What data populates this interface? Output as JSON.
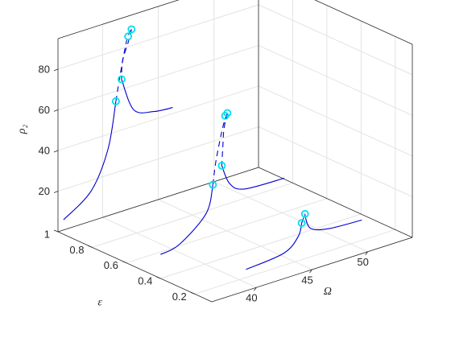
{
  "chart_data": {
    "type": "line",
    "view": "3d",
    "title": "",
    "xlabel": "Ω",
    "ylabel": "ε",
    "zlabel": "ρ₂",
    "x_ticks": [
      40,
      45,
      50
    ],
    "y_ticks": [
      1,
      0.8,
      0.6,
      0.4,
      0.2
    ],
    "y_tick_labels": [
      "1",
      "0.8",
      "0.6",
      "0.4",
      "0.2"
    ],
    "z_ticks": [
      20,
      40,
      60,
      80
    ],
    "xlim": [
      36,
      54
    ],
    "ylim": [
      0.1,
      1.0
    ],
    "zlim": [
      0,
      95
    ],
    "grid": true,
    "box": true,
    "line_color": "#0000cc",
    "marker_color": "#00e0ee",
    "series": [
      {
        "epsilon": 1.0,
        "left_branch": [
          [
            36.5,
            5
          ],
          [
            39.0,
            15
          ],
          [
            40.5,
            33
          ],
          [
            41.2,
            55
          ]
        ],
        "left_dashed": [
          [
            41.2,
            55
          ],
          [
            41.6,
            68
          ],
          [
            42.2,
            84
          ],
          [
            42.6,
            88
          ]
        ],
        "right_dashed": [
          [
            42.6,
            88
          ],
          [
            42.3,
            82
          ],
          [
            41.8,
            74
          ],
          [
            41.7,
            65
          ]
        ],
        "right_branch": [
          [
            41.7,
            65
          ],
          [
            42.8,
            48
          ],
          [
            44.6,
            44
          ],
          [
            46.3,
            43
          ]
        ],
        "fold_points": [
          [
            41.2,
            55
          ],
          [
            42.6,
            88
          ],
          [
            42.3,
            85
          ],
          [
            41.7,
            65
          ]
        ]
      },
      {
        "epsilon": 0.55,
        "left_branch": [
          [
            38.3,
            2
          ],
          [
            40.0,
            4
          ],
          [
            42.4,
            15
          ],
          [
            43.0,
            28
          ]
        ],
        "left_dashed": [
          [
            43.0,
            28
          ],
          [
            43.3,
            40
          ],
          [
            43.9,
            55
          ],
          [
            44.3,
            61
          ]
        ],
        "right_dashed": [
          [
            44.3,
            61
          ],
          [
            44.0,
            54
          ],
          [
            43.9,
            46
          ],
          [
            43.8,
            36
          ]
        ],
        "right_branch": [
          [
            43.8,
            36
          ],
          [
            44.5,
            26
          ],
          [
            45.8,
            21
          ],
          [
            49.4,
            20
          ]
        ],
        "fold_points": [
          [
            43.0,
            28
          ],
          [
            44.3,
            61
          ],
          [
            44.1,
            60
          ],
          [
            43.8,
            36
          ]
        ]
      },
      {
        "epsilon": 0.2,
        "left_branch": [
          [
            40.6,
            4
          ],
          [
            44.0,
            6
          ],
          [
            45.3,
            12
          ],
          [
            45.6,
            18
          ]
        ],
        "left_dashed": [
          [
            45.6,
            18
          ],
          [
            45.9,
            22
          ]
        ],
        "right_dashed": [
          [
            45.9,
            22
          ],
          [
            45.9,
            21
          ]
        ],
        "right_branch": [
          [
            45.9,
            21
          ],
          [
            46.4,
            14
          ],
          [
            48.0,
            11
          ],
          [
            51.0,
            10
          ]
        ],
        "fold_points": [
          [
            45.6,
            18
          ],
          [
            45.9,
            22
          ]
        ]
      }
    ]
  }
}
